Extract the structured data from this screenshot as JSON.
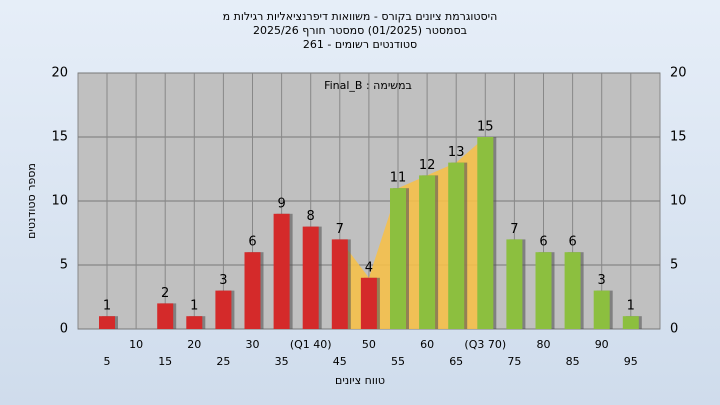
{
  "chart_data": {
    "type": "bar",
    "title": [
      "היסטוגרמת ציונים בקורס - משוואות דיפרנציאליות רגילות מ",
      "בסמסטר  (01/2025)  סמסטר חורף 2025/26",
      "261 - סטודנטים רשומים"
    ],
    "annotation": "Final_B : במשימה",
    "ylabel": "מספר סטודנטים",
    "xlabel": "טווח ציונים",
    "categories": [
      "5",
      "10",
      "15",
      "20",
      "25",
      "30",
      "35",
      "(Q1 40)",
      "45",
      "50",
      "55",
      "60",
      "65",
      "(Q3 70)",
      "75",
      "80",
      "85",
      "90",
      "95"
    ],
    "values": [
      1,
      0,
      2,
      1,
      3,
      6,
      9,
      8,
      7,
      4,
      11,
      12,
      13,
      15,
      7,
      6,
      6,
      3,
      1
    ],
    "colors": [
      "#d42a2a",
      "#d42a2a",
      "#d42a2a",
      "#d42a2a",
      "#d42a2a",
      "#d42a2a",
      "#d42a2a",
      "#d42a2a",
      "#d42a2a",
      "#d42a2a",
      "#8cbf3f",
      "#8cbf3f",
      "#8cbf3f",
      "#8cbf3f",
      "#8cbf3f",
      "#8cbf3f",
      "#8cbf3f",
      "#8cbf3f",
      "#8cbf3f"
    ],
    "ylim": [
      0,
      20
    ],
    "yticks": [
      0,
      5,
      10,
      15,
      20
    ],
    "grid": true
  }
}
